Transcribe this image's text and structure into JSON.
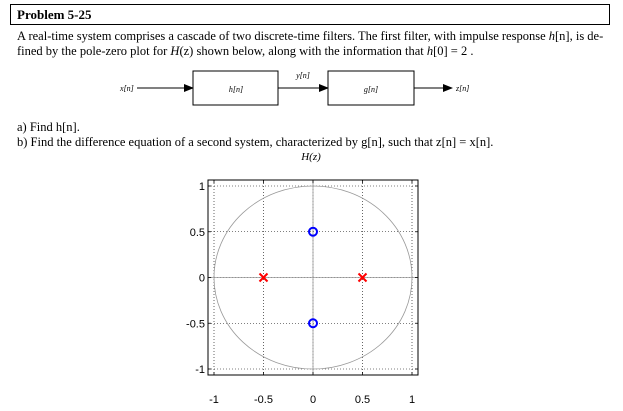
{
  "problem": {
    "title": "Problem 5-25"
  },
  "statement": {
    "line1_a": "A real-time system comprises a cascade of two discrete-time filters.  The first filter, with impulse response ",
    "line1_h": "h",
    "line1_n": "[n]",
    "line1_b": ", is de-",
    "line2_a": "fined by the pole-zero plot for ",
    "line2_H": "H",
    "line2_z": "(z)",
    "line2_b": " shown below, along with the information that ",
    "line2_h": "h",
    "line2_c": "[0] = 2 ."
  },
  "block_diagram": {
    "input": "x[n]",
    "block1": "h[n]",
    "middle": "y[n]",
    "block2": "g[n]",
    "output": "z[n]"
  },
  "questions": {
    "a": "a) Find h[n].",
    "b": "b) Find the difference equation of a second system, characterized by g[n], such that z[n] = x[n]."
  },
  "chart_data": {
    "type": "scatter",
    "title": "H(z)",
    "xlim": [
      -1.0,
      1.0
    ],
    "ylim": [
      -1.0,
      1.0
    ],
    "xticks": [
      "-1",
      "-0.5",
      "0",
      "0.5",
      "1"
    ],
    "yticks": [
      "1",
      "0.5",
      "0",
      "-0.5",
      "-1"
    ],
    "grid": true,
    "unit_circle": true,
    "poles": {
      "marker": "x",
      "color": "#ff0000",
      "points": [
        [
          -0.5,
          0
        ],
        [
          0.5,
          0
        ]
      ]
    },
    "zeros": {
      "marker": "o",
      "color": "#0000ff",
      "points": [
        [
          0,
          0.5
        ],
        [
          0,
          -0.5
        ]
      ]
    }
  }
}
